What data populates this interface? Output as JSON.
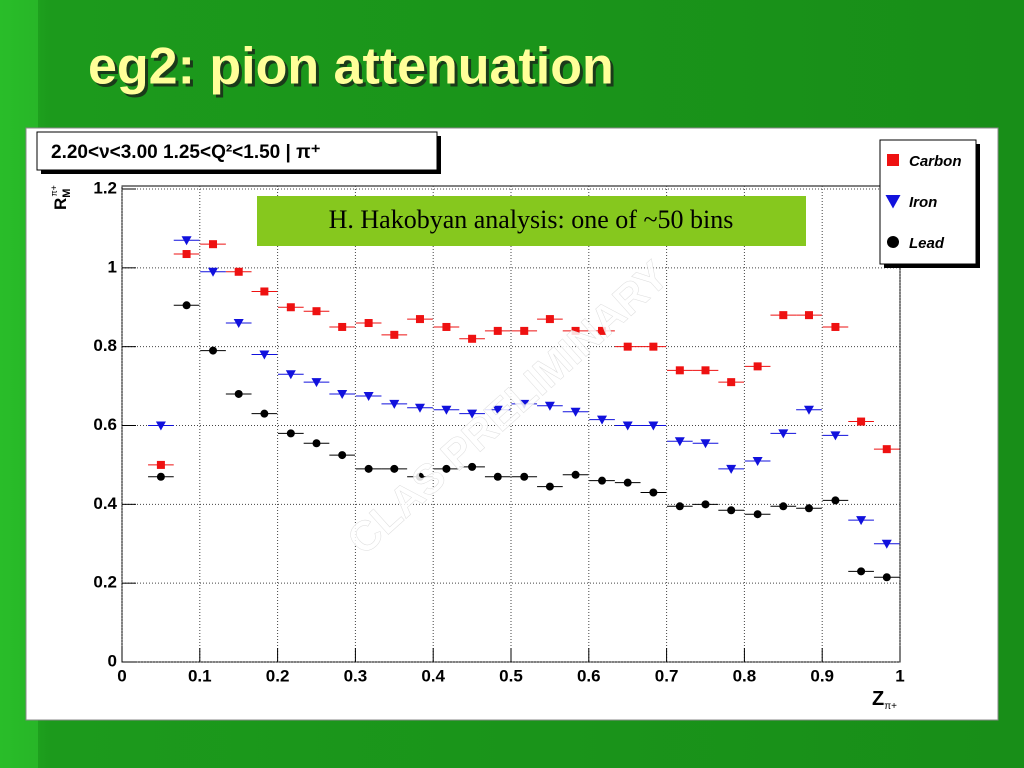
{
  "slide_title": "eg2: pion attenuation",
  "chart_data": {
    "type": "scatter",
    "title": "2.20<ν<3.00 1.25<Q²<1.50 | π⁺",
    "xlabel": {
      "base": "Z",
      "sub": "π+"
    },
    "ylabel": {
      "base": "R",
      "sup": "π+",
      "sub": "M"
    },
    "annotations": [
      "H. Hakobyan analysis: one of ~50 bins",
      "CLAS PRELIMINARY"
    ],
    "x": [
      0.05,
      0.083,
      0.117,
      0.15,
      0.183,
      0.217,
      0.25,
      0.283,
      0.317,
      0.35,
      0.383,
      0.417,
      0.45,
      0.483,
      0.517,
      0.55,
      0.583,
      0.617,
      0.65,
      0.683,
      0.717,
      0.75,
      0.783,
      0.817,
      0.85,
      0.883,
      0.917,
      0.95,
      0.983
    ],
    "series": [
      {
        "name": "Carbon",
        "color": "#ee1111",
        "marker": "square",
        "values": [
          0.5,
          1.035,
          1.06,
          0.99,
          0.94,
          0.9,
          0.89,
          0.85,
          0.86,
          0.83,
          0.87,
          0.85,
          0.82,
          0.84,
          0.84,
          0.87,
          0.84,
          0.84,
          0.8,
          0.8,
          0.74,
          0.74,
          0.71,
          0.75,
          0.88,
          0.88,
          0.85,
          0.61,
          0.54
        ]
      },
      {
        "name": "Iron",
        "color": "#1111dd",
        "marker": "triangle",
        "values": [
          0.6,
          1.07,
          0.99,
          0.86,
          0.78,
          0.73,
          0.71,
          0.68,
          0.675,
          0.655,
          0.645,
          0.64,
          0.63,
          0.64,
          0.655,
          0.65,
          0.635,
          0.615,
          0.6,
          0.6,
          0.56,
          0.555,
          0.49,
          0.51,
          0.58,
          0.64,
          0.575,
          0.36,
          0.3
        ]
      },
      {
        "name": "Lead",
        "color": "#000000",
        "marker": "circle",
        "values": [
          0.47,
          0.905,
          0.79,
          0.68,
          0.63,
          0.58,
          0.555,
          0.525,
          0.49,
          0.49,
          0.47,
          0.49,
          0.495,
          0.47,
          0.47,
          0.445,
          0.475,
          0.46,
          0.455,
          0.43,
          0.395,
          0.4,
          0.385,
          0.375,
          0.395,
          0.39,
          0.41,
          0.23,
          0.215
        ]
      }
    ],
    "xlim": [
      0,
      1
    ],
    "ylim": [
      0,
      1.2
    ],
    "xticks": [
      0,
      0.1,
      0.2,
      0.3,
      0.4,
      0.5,
      0.6,
      0.7,
      0.8,
      0.9,
      1
    ],
    "yticks": [
      0,
      0.2,
      0.4,
      0.6,
      0.8,
      1,
      1.2
    ],
    "grid": true,
    "legend": "upper right"
  }
}
